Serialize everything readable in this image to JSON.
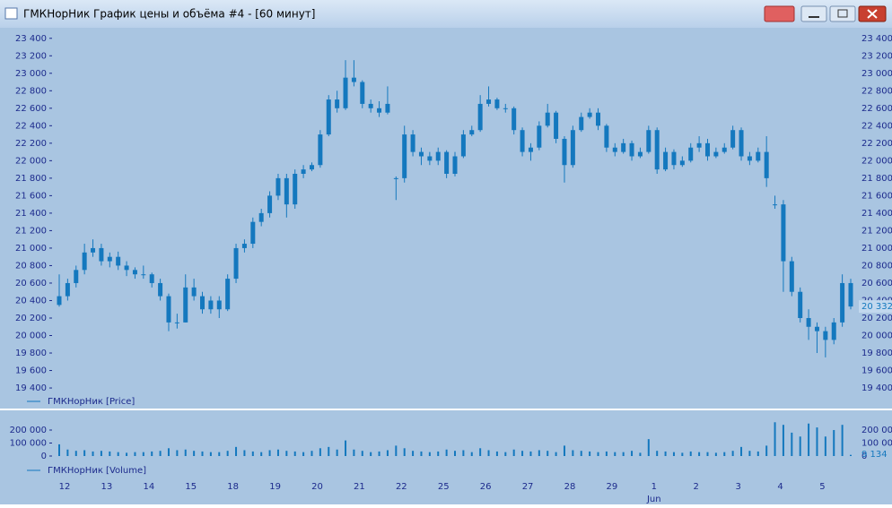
{
  "window_title": "ГМКНорНик График цены и объёма #4 - [60 минут]",
  "chart_data": {
    "type": "candlestick",
    "color": "#1478be",
    "price_legend": "ГМКНорНик [Price]",
    "volume_legend": "ГМКНорНик [Volume]",
    "ylim": [
      19175,
      23500
    ],
    "yticks": [
      {
        "value": 19400,
        "label": "19 400"
      },
      {
        "value": 19600,
        "label": "19 600"
      },
      {
        "value": 19800,
        "label": "19 800"
      },
      {
        "value": 20000,
        "label": "20 000"
      },
      {
        "value": 20200,
        "label": "20 200"
      },
      {
        "value": 20400,
        "label": "20 400"
      },
      {
        "value": 20600,
        "label": "20 600"
      },
      {
        "value": 20800,
        "label": "20 800"
      },
      {
        "value": 21000,
        "label": "21 000"
      },
      {
        "value": 21200,
        "label": "21 200"
      },
      {
        "value": 21400,
        "label": "21 400"
      },
      {
        "value": 21600,
        "label": "21 600"
      },
      {
        "value": 21800,
        "label": "21 800"
      },
      {
        "value": 22000,
        "label": "22 000"
      },
      {
        "value": 22200,
        "label": "22 200"
      },
      {
        "value": 22400,
        "label": "22 400"
      },
      {
        "value": 22600,
        "label": "22 600"
      },
      {
        "value": 22800,
        "label": "22 800"
      },
      {
        "value": 23000,
        "label": "23 000"
      },
      {
        "value": 23200,
        "label": "23 200"
      },
      {
        "value": 23400,
        "label": "23 400"
      }
    ],
    "y2lim": [
      0,
      324000
    ],
    "y2ticks": [
      0,
      {
        "value": 100000,
        "label": "100 000"
      },
      {
        "value": 200000,
        "label": "200 000"
      }
    ],
    "xticks": [
      {
        "value": 0,
        "label": "12"
      },
      {
        "value": 5,
        "label": "13"
      },
      {
        "value": 10,
        "label": "14"
      },
      {
        "value": 15,
        "label": "15"
      },
      {
        "value": 20,
        "label": "18"
      },
      {
        "value": 25,
        "label": "19"
      },
      {
        "value": 30,
        "label": "20"
      },
      {
        "value": 35,
        "label": "21"
      },
      {
        "value": 40,
        "label": "22"
      },
      {
        "value": 45,
        "label": "25"
      },
      {
        "value": 50,
        "label": "26"
      },
      {
        "value": 55,
        "label": "27"
      },
      {
        "value": 60,
        "label": "28"
      },
      {
        "value": 65,
        "label": "29"
      },
      {
        "value": 70,
        "label": "1"
      },
      {
        "value": 75,
        "label": "2"
      },
      {
        "value": 80,
        "label": "3"
      },
      {
        "value": 85,
        "label": "4"
      },
      {
        "value": 90,
        "label": "5"
      }
    ],
    "month_label": {
      "value": 70,
      "label": "Jun"
    },
    "last_price": {
      "value": 20332,
      "label": "20 332"
    },
    "last_volume": {
      "value": 9134,
      "label": "9 134"
    },
    "ohlc": [
      [
        20350,
        20700,
        20330,
        20450
      ],
      [
        20450,
        20650,
        20400,
        20600
      ],
      [
        20600,
        20800,
        20550,
        20750
      ],
      [
        20750,
        21050,
        20700,
        20950
      ],
      [
        20950,
        21100,
        20900,
        21000
      ],
      [
        21000,
        21050,
        20800,
        20850
      ],
      [
        20850,
        20950,
        20780,
        20900
      ],
      [
        20900,
        20960,
        20750,
        20800
      ],
      [
        20800,
        20850,
        20680,
        20750
      ],
      [
        20750,
        20780,
        20650,
        20700
      ],
      [
        20700,
        20800,
        20650,
        20700
      ],
      [
        20700,
        20720,
        20550,
        20600
      ],
      [
        20600,
        20650,
        20400,
        20450
      ],
      [
        20450,
        20480,
        20050,
        20150
      ],
      [
        20150,
        20250,
        20080,
        20150
      ],
      [
        20150,
        20700,
        20150,
        20550
      ],
      [
        20550,
        20650,
        20400,
        20450
      ],
      [
        20450,
        20500,
        20250,
        20300
      ],
      [
        20300,
        20450,
        20250,
        20400
      ],
      [
        20400,
        20450,
        20200,
        20300
      ],
      [
        20300,
        20700,
        20280,
        20650
      ],
      [
        20650,
        21050,
        20600,
        21000
      ],
      [
        21000,
        21100,
        20950,
        21050
      ],
      [
        21050,
        21350,
        21000,
        21300
      ],
      [
        21300,
        21450,
        21250,
        21400
      ],
      [
        21400,
        21650,
        21350,
        21600
      ],
      [
        21600,
        21850,
        21550,
        21800
      ],
      [
        21800,
        21850,
        21350,
        21500
      ],
      [
        21500,
        21900,
        21450,
        21850
      ],
      [
        21850,
        21950,
        21800,
        21900
      ],
      [
        21900,
        21980,
        21880,
        21950
      ],
      [
        21950,
        22350,
        21920,
        22300
      ],
      [
        22300,
        22750,
        22280,
        22700
      ],
      [
        22700,
        22800,
        22550,
        22600
      ],
      [
        22600,
        23150,
        22580,
        22950
      ],
      [
        22950,
        23150,
        22850,
        22900
      ],
      [
        22900,
        22920,
        22600,
        22650
      ],
      [
        22650,
        22700,
        22550,
        22600
      ],
      [
        22600,
        22680,
        22500,
        22550
      ],
      [
        22550,
        22850,
        22530,
        22650
      ],
      [
        21800,
        21820,
        21550,
        21800
      ],
      [
        21800,
        22400,
        21750,
        22300
      ],
      [
        22300,
        22350,
        22050,
        22100
      ],
      [
        22100,
        22150,
        21950,
        22050
      ],
      [
        22050,
        22100,
        21950,
        22000
      ],
      [
        22000,
        22150,
        21950,
        22100
      ],
      [
        22100,
        22120,
        21800,
        21850
      ],
      [
        21850,
        22100,
        21820,
        22050
      ],
      [
        22050,
        22350,
        22030,
        22300
      ],
      [
        22300,
        22400,
        22280,
        22350
      ],
      [
        22350,
        22750,
        22330,
        22650
      ],
      [
        22650,
        22850,
        22620,
        22700
      ],
      [
        22700,
        22720,
        22580,
        22600
      ],
      [
        22600,
        22650,
        22550,
        22600
      ],
      [
        22600,
        22620,
        22300,
        22350
      ],
      [
        22350,
        22380,
        22050,
        22100
      ],
      [
        22100,
        22200,
        22000,
        22150
      ],
      [
        22150,
        22450,
        22120,
        22400
      ],
      [
        22400,
        22650,
        22380,
        22550
      ],
      [
        22550,
        22570,
        22200,
        22250
      ],
      [
        22250,
        22280,
        21750,
        21950
      ],
      [
        21950,
        22400,
        21920,
        22350
      ],
      [
        22350,
        22550,
        22330,
        22500
      ],
      [
        22500,
        22600,
        22480,
        22550
      ],
      [
        22550,
        22600,
        22350,
        22400
      ],
      [
        22400,
        22420,
        22100,
        22150
      ],
      [
        22150,
        22200,
        22050,
        22100
      ],
      [
        22100,
        22250,
        22080,
        22200
      ],
      [
        22200,
        22230,
        22000,
        22050
      ],
      [
        22050,
        22150,
        22030,
        22100
      ],
      [
        22100,
        22400,
        22080,
        22350
      ],
      [
        22350,
        22380,
        21850,
        21900
      ],
      [
        21900,
        22150,
        21880,
        22100
      ],
      [
        22100,
        22130,
        21900,
        21950
      ],
      [
        21950,
        22050,
        21930,
        22000
      ],
      [
        22000,
        22200,
        21980,
        22150
      ],
      [
        22150,
        22280,
        22100,
        22200
      ],
      [
        22200,
        22250,
        22000,
        22050
      ],
      [
        22050,
        22150,
        22030,
        22100
      ],
      [
        22100,
        22200,
        22080,
        22150
      ],
      [
        22150,
        22400,
        22130,
        22350
      ],
      [
        22350,
        22380,
        22000,
        22050
      ],
      [
        22050,
        22100,
        21950,
        22000
      ],
      [
        22000,
        22150,
        21980,
        22100
      ],
      [
        22100,
        22280,
        21700,
        21800
      ],
      [
        21500,
        21600,
        21450,
        21500
      ],
      [
        21500,
        21550,
        20500,
        20850
      ],
      [
        20850,
        20900,
        20450,
        20500
      ],
      [
        20500,
        20550,
        20150,
        20200
      ],
      [
        20200,
        20300,
        19950,
        20100
      ],
      [
        20100,
        20150,
        19800,
        20050
      ],
      [
        20050,
        20100,
        19750,
        19950
      ],
      [
        19950,
        20200,
        19900,
        20150
      ],
      [
        20150,
        20700,
        20100,
        20600
      ],
      [
        20600,
        20650,
        20300,
        20332
      ]
    ],
    "volume": [
      90000,
      50000,
      40000,
      45000,
      35000,
      40000,
      35000,
      30000,
      25000,
      30000,
      30000,
      35000,
      40000,
      60000,
      45000,
      50000,
      40000,
      35000,
      30000,
      30000,
      40000,
      70000,
      45000,
      35000,
      30000,
      45000,
      50000,
      40000,
      35000,
      30000,
      40000,
      60000,
      70000,
      50000,
      120000,
      50000,
      40000,
      30000,
      35000,
      45000,
      80000,
      60000,
      40000,
      35000,
      30000,
      35000,
      50000,
      40000,
      45000,
      30000,
      60000,
      45000,
      35000,
      30000,
      50000,
      40000,
      35000,
      45000,
      40000,
      30000,
      80000,
      45000,
      40000,
      35000,
      30000,
      35000,
      30000,
      30000,
      40000,
      25000,
      130000,
      40000,
      35000,
      30000,
      25000,
      35000,
      30000,
      30000,
      25000,
      30000,
      40000,
      70000,
      40000,
      35000,
      80000,
      260000,
      240000,
      180000,
      150000,
      250000,
      220000,
      150000,
      200000,
      240000,
      9134
    ]
  }
}
